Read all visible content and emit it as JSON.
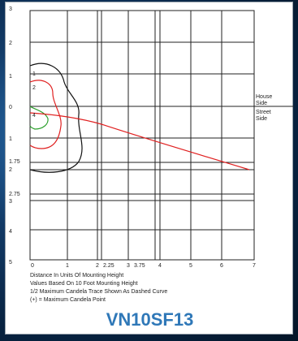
{
  "title": "VN10SF13",
  "y_labels_top": [
    "3",
    "2",
    "1",
    "0",
    "1",
    "1.75",
    "2",
    "2.75",
    "3",
    "4",
    "5"
  ],
  "x_labels": [
    "0",
    "1",
    "2",
    "2.25",
    "3",
    "3.75",
    "4",
    "5",
    "6",
    "7"
  ],
  "curve_labels": [
    "1",
    "2",
    "4"
  ],
  "side_labels": {
    "house": "House",
    "side1": "Side",
    "street": "Street",
    "side2": "Side"
  },
  "notes": [
    "Distance In Units Of Mounting Height",
    "Values Based On 10 Foot Mounting Height",
    "1/2 Maximum Candela Trace Shown As Dashed Curve",
    "(+) = Maximum Candela Point"
  ],
  "colors": {
    "curve1": "#111111",
    "curve2": "#e02020",
    "curve4": "#2ca02c",
    "trace": "#e02020",
    "title": "#2f78b8"
  }
}
